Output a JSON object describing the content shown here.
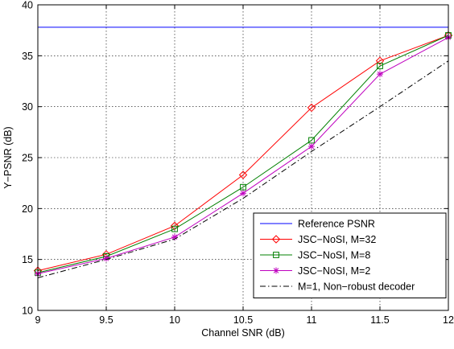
{
  "chart_data": {
    "type": "line",
    "xlabel": "Channel SNR (dB)",
    "ylabel": "Y−PSNR (dB)",
    "xlim": [
      9,
      12
    ],
    "ylim": [
      10,
      40
    ],
    "xticks": [
      "9",
      "9.5",
      "10",
      "10.5",
      "11",
      "11.5",
      "12"
    ],
    "yticks": [
      "10",
      "15",
      "20",
      "25",
      "30",
      "35",
      "40"
    ],
    "grid": true,
    "legend_position": "bottom-right",
    "x": [
      9,
      9.5,
      10,
      10.5,
      11,
      11.5,
      12
    ],
    "series": [
      {
        "name": "Reference PSNR",
        "color": "#0000ff",
        "line_style": "solid",
        "marker": "none",
        "values": [
          37.8,
          37.8,
          37.8,
          37.8,
          37.8,
          37.8,
          37.8
        ]
      },
      {
        "name": "JSC−NoSI, M=32",
        "color": "#ff0000",
        "line_style": "solid",
        "marker": "diamond",
        "values": [
          13.9,
          15.5,
          18.3,
          23.3,
          29.9,
          34.5,
          37.0
        ]
      },
      {
        "name": "JSC−NoSI, M=8",
        "color": "#008000",
        "line_style": "solid",
        "marker": "square",
        "values": [
          13.7,
          15.3,
          18.0,
          22.1,
          26.7,
          34.0,
          37.0
        ]
      },
      {
        "name": "JSC−NoSI, M=2",
        "color": "#bf00bf",
        "line_style": "solid",
        "marker": "asterisk",
        "values": [
          13.6,
          15.1,
          17.2,
          21.5,
          26.1,
          33.2,
          36.8
        ]
      },
      {
        "name": "M=1, Non−robust decoder",
        "color": "#000000",
        "line_style": "dashdot",
        "marker": "none",
        "values": [
          13.2,
          15.0,
          17.0,
          21.0,
          25.6,
          30.0,
          34.5
        ]
      }
    ]
  }
}
